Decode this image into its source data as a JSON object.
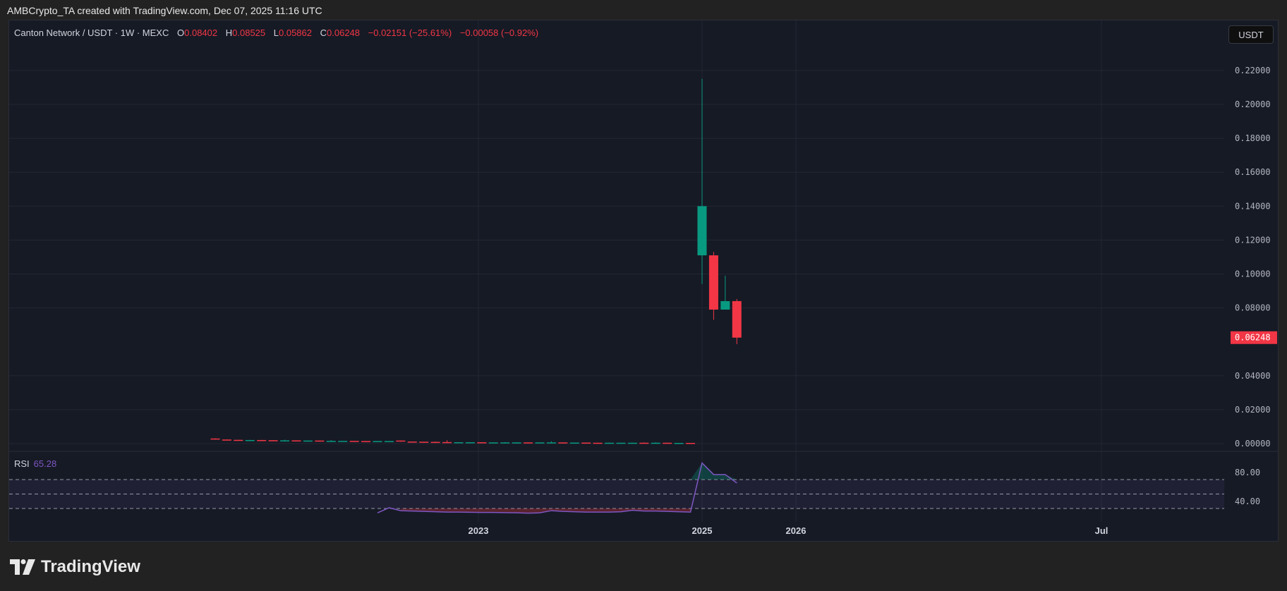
{
  "credit": "AMBCrypto_TA created with TradingView.com, Dec 07, 2025 11:16 UTC",
  "legend": {
    "symbol": "Canton Network / USDT · 1W · MEXC",
    "o_label": "O",
    "o": "0.08402",
    "h_label": "H",
    "h": "0.08525",
    "l_label": "L",
    "l": "0.05862",
    "c_label": "C",
    "c": "0.06248",
    "change": "−0.02151 (−25.61%)",
    "change2": "−0.00058 (−0.92%)"
  },
  "unit_button": "USDT",
  "rsi": {
    "label": "RSI",
    "value": "65.28"
  },
  "logo_text": "TradingView",
  "colors": {
    "up": "#089981",
    "down": "#f23645",
    "rsi": "#7e57c2",
    "last_price_bg": "#f23645"
  },
  "chart_data": [
    {
      "type": "candlestick",
      "ylim": [
        0,
        0.23
      ],
      "y_ticks": [
        "0.22000",
        "0.20000",
        "0.18000",
        "0.16000",
        "0.14000",
        "0.12000",
        "0.10000",
        "0.08000",
        "0.04000",
        "0.02000",
        "0.00000"
      ],
      "last_price": "0.06248",
      "x_ticks": [
        "2023",
        "2025",
        "2026",
        "Jul"
      ],
      "grid": true,
      "candles": [
        [
          0.003,
          0.0031,
          0.0023,
          0.0024
        ],
        [
          0.0024,
          0.0025,
          0.0022,
          0.0022
        ],
        [
          0.0022,
          0.0023,
          0.0021,
          0.0021
        ],
        [
          0.002,
          0.0022,
          0.002,
          0.0021
        ],
        [
          0.0021,
          0.0022,
          0.0019,
          0.002
        ],
        [
          0.002,
          0.002,
          0.0018,
          0.0019
        ],
        [
          0.0018,
          0.0023,
          0.0018,
          0.0019
        ],
        [
          0.0019,
          0.0019,
          0.0017,
          0.0018
        ],
        [
          0.0017,
          0.0018,
          0.0017,
          0.0018
        ],
        [
          0.0018,
          0.0018,
          0.0016,
          0.0016
        ],
        [
          0.0016,
          0.0021,
          0.0015,
          0.0016
        ],
        [
          0.0015,
          0.0016,
          0.0015,
          0.0016
        ],
        [
          0.0016,
          0.0016,
          0.0015,
          0.0015
        ],
        [
          0.0015,
          0.0015,
          0.0014,
          0.0014
        ],
        [
          0.0014,
          0.0015,
          0.0014,
          0.0015
        ],
        [
          0.0014,
          0.0015,
          0.0014,
          0.0015
        ],
        [
          0.0018,
          0.0018,
          0.0011,
          0.0012
        ],
        [
          0.0012,
          0.0012,
          0.0011,
          0.0011
        ],
        [
          0.0011,
          0.0011,
          0.001,
          0.001
        ],
        [
          0.001,
          0.0012,
          0.0007,
          0.0008
        ],
        [
          0.0009,
          0.002,
          0.0008,
          0.0008
        ],
        [
          0.0008,
          0.0008,
          0.0007,
          0.0008
        ],
        [
          0.0007,
          0.0008,
          0.0007,
          0.0008
        ],
        [
          0.0008,
          0.0008,
          0.0007,
          0.0007
        ],
        [
          0.0007,
          0.0007,
          0.0006,
          0.0007
        ],
        [
          0.0007,
          0.0009,
          0.0006,
          0.0007
        ],
        [
          0.0007,
          0.0008,
          0.0006,
          0.0007
        ],
        [
          0.0007,
          0.0007,
          0.0006,
          0.0006
        ],
        [
          0.0006,
          0.0007,
          0.0006,
          0.0007
        ],
        [
          0.0006,
          0.0014,
          0.0006,
          0.0007
        ],
        [
          0.0007,
          0.0007,
          0.0006,
          0.0006
        ],
        [
          0.0006,
          0.0006,
          0.0005,
          0.0006
        ],
        [
          0.0006,
          0.0006,
          0.0005,
          0.0005
        ],
        [
          0.0005,
          0.0005,
          0.0004,
          0.0004
        ],
        [
          0.0004,
          0.0006,
          0.0004,
          0.0005
        ],
        [
          0.0004,
          0.0005,
          0.0004,
          0.0005
        ],
        [
          0.0004,
          0.0005,
          0.0004,
          0.0005
        ],
        [
          0.0005,
          0.0007,
          0.0004,
          0.0004
        ],
        [
          0.0004,
          0.0008,
          0.0004,
          0.0005
        ],
        [
          0.0005,
          0.0005,
          0.0004,
          0.0004
        ],
        [
          0.0004,
          0.0004,
          0.0004,
          0.0004
        ],
        [
          0.0004,
          0.0004,
          0.0003,
          0.0003
        ],
        [
          0.111,
          0.215,
          0.094,
          0.14
        ],
        [
          0.111,
          0.113,
          0.073,
          0.079
        ],
        [
          0.079,
          0.099,
          0.079,
          0.084
        ],
        [
          0.08402,
          0.08525,
          0.05862,
          0.06248
        ]
      ]
    },
    {
      "type": "line",
      "name": "RSI",
      "ylim": [
        0,
        100
      ],
      "y_ticks": [
        "80.00",
        "40.00"
      ],
      "bands": [
        70,
        50,
        30
      ],
      "start_index": 14,
      "values": [
        24,
        31,
        27,
        26.5,
        26,
        25.5,
        25,
        25,
        24.8,
        24.5,
        24.5,
        24.3,
        24,
        23.5,
        24,
        27,
        26,
        25.5,
        25,
        25,
        25,
        25.5,
        27.5,
        26.5,
        26.5,
        26,
        25.5,
        25,
        93,
        77,
        77,
        65.28
      ]
    }
  ]
}
